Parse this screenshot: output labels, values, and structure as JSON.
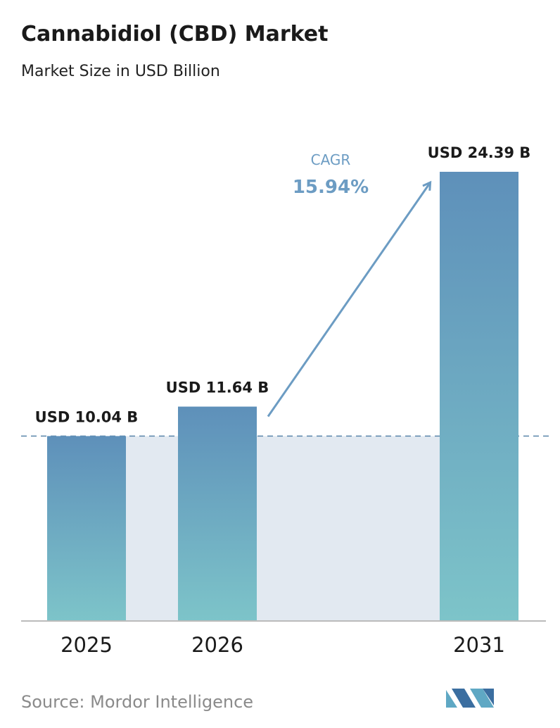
{
  "chart_data": {
    "type": "bar",
    "title": "Cannabidiol (CBD) Market",
    "subtitle": "Market Size in USD Billion",
    "categories": [
      "2025",
      "2026",
      "2031"
    ],
    "values": [
      10.04,
      11.64,
      24.39
    ],
    "value_labels": [
      "USD 10.04 B",
      "USD 11.64 B",
      "USD 24.39 B"
    ],
    "color": [
      "#5e90ba",
      "#7dc4c9"
    ],
    "annotations": [
      "CAGR",
      "15.94%"
    ],
    "source": "Source: Mordor Intelligence"
  }
}
